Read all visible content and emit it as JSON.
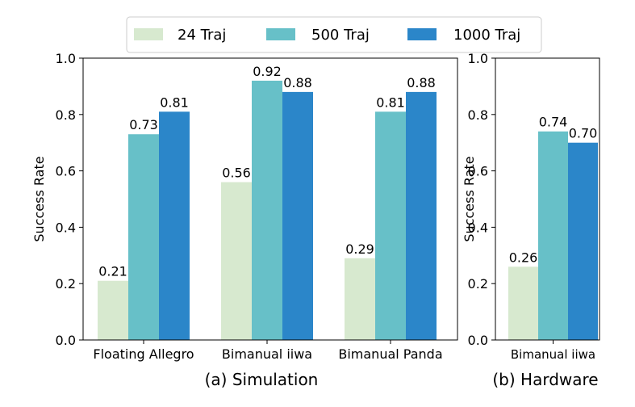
{
  "legend": {
    "placement": "top-center",
    "entries": [
      "24 Traj",
      "500 Traj",
      "1000 Traj"
    ]
  },
  "colors": {
    "24 Traj": "#d7e9cf",
    "500 Traj": "#67c0c8",
    "1000 Traj": "#2b86c9"
  },
  "chart_data": [
    {
      "type": "bar",
      "caption": "(a) Simulation",
      "ylabel": "Success Rate",
      "xlabel": "",
      "ylim": [
        0,
        1.0
      ],
      "yticks": [
        "0.0",
        "0.2",
        "0.4",
        "0.6",
        "0.8",
        "1.0"
      ],
      "grid": false,
      "categories": [
        "Floating Allegro",
        "Bimanual iiwa",
        "Bimanual Panda"
      ],
      "series": [
        {
          "name": "24 Traj",
          "values": [
            0.21,
            0.56,
            0.29
          ],
          "labels": [
            "0.21",
            "0.56",
            "0.29"
          ]
        },
        {
          "name": "500 Traj",
          "values": [
            0.73,
            0.92,
            0.81
          ],
          "labels": [
            "0.73",
            "0.92",
            "0.81"
          ]
        },
        {
          "name": "1000 Traj",
          "values": [
            0.81,
            0.88,
            0.88
          ],
          "labels": [
            "0.81",
            "0.88",
            "0.88"
          ]
        }
      ]
    },
    {
      "type": "bar",
      "caption": "(b) Hardware",
      "ylabel": "Success Rate",
      "xlabel": "",
      "ylim": [
        0,
        1.0
      ],
      "yticks": [
        "0.0",
        "0.2",
        "0.4",
        "0.6",
        "0.8",
        "1.0"
      ],
      "grid": false,
      "categories": [
        "Bimanual iiwa"
      ],
      "series": [
        {
          "name": "24 Traj",
          "values": [
            0.26
          ],
          "labels": [
            "0.26"
          ]
        },
        {
          "name": "500 Traj",
          "values": [
            0.74
          ],
          "labels": [
            "0.74"
          ]
        },
        {
          "name": "1000 Traj",
          "values": [
            0.7
          ],
          "labels": [
            "0.70"
          ]
        }
      ]
    }
  ]
}
